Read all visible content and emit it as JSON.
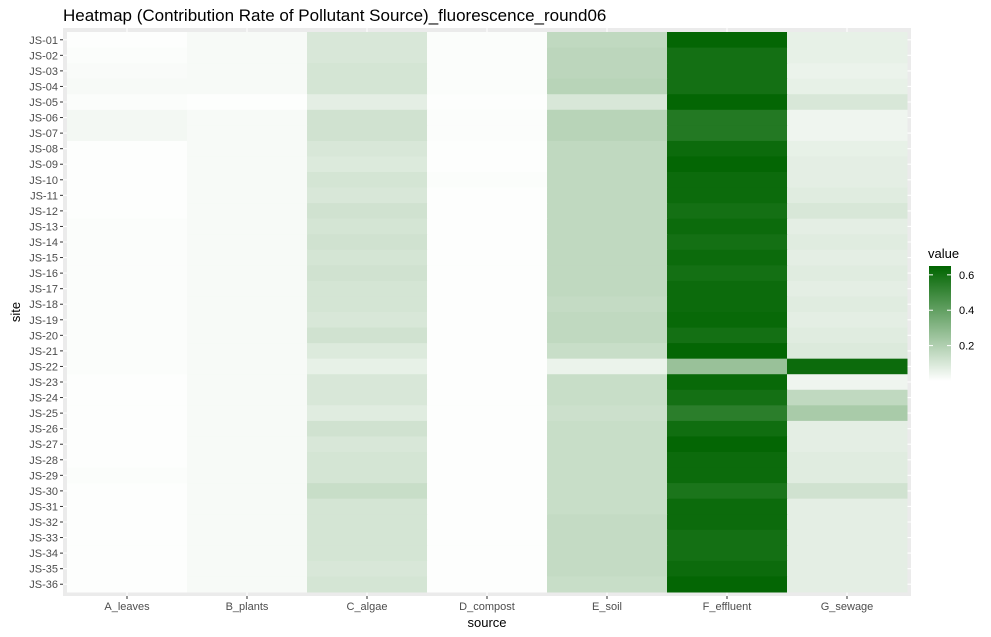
{
  "chart_data": {
    "type": "heatmap",
    "title": "Heatmap (Contribution Rate of Pollutant Source)_fluorescence_round06",
    "xlabel": "source",
    "ylabel": "site",
    "x_categories": [
      "A_leaves",
      "B_plants",
      "C_algae",
      "D_compost",
      "E_soil",
      "F_effluent",
      "G_sewage"
    ],
    "y_categories": [
      "JS-01",
      "JS-02",
      "JS-03",
      "JS-04",
      "JS-05",
      "JS-06",
      "JS-07",
      "JS-08",
      "JS-09",
      "JS-10",
      "JS-11",
      "JS-12",
      "JS-13",
      "JS-14",
      "JS-15",
      "JS-16",
      "JS-17",
      "JS-18",
      "JS-19",
      "JS-20",
      "JS-21",
      "JS-22",
      "JS-23",
      "JS-24",
      "JS-25",
      "JS-26",
      "JS-27",
      "JS-28",
      "JS-29",
      "JS-30",
      "JS-31",
      "JS-32",
      "JS-33",
      "JS-34",
      "JS-35",
      "JS-36"
    ],
    "values": [
      [
        0.005,
        0.02,
        0.1,
        0.01,
        0.16,
        0.64,
        0.06
      ],
      [
        0.01,
        0.02,
        0.1,
        0.01,
        0.17,
        0.6,
        0.06
      ],
      [
        0.015,
        0.02,
        0.11,
        0.01,
        0.17,
        0.6,
        0.05
      ],
      [
        0.02,
        0.02,
        0.11,
        0.01,
        0.18,
        0.6,
        0.06
      ],
      [
        0.01,
        0.005,
        0.07,
        0.005,
        0.1,
        0.64,
        0.1
      ],
      [
        0.03,
        0.02,
        0.12,
        0.01,
        0.18,
        0.56,
        0.04
      ],
      [
        0.03,
        0.02,
        0.12,
        0.01,
        0.18,
        0.56,
        0.04
      ],
      [
        0.005,
        0.02,
        0.1,
        0.005,
        0.16,
        0.62,
        0.06
      ],
      [
        0.005,
        0.02,
        0.09,
        0.005,
        0.16,
        0.64,
        0.07
      ],
      [
        0.005,
        0.02,
        0.11,
        0.01,
        0.16,
        0.62,
        0.07
      ],
      [
        0.005,
        0.02,
        0.1,
        0.005,
        0.16,
        0.62,
        0.08
      ],
      [
        0.005,
        0.02,
        0.12,
        0.005,
        0.16,
        0.6,
        0.1
      ],
      [
        0.01,
        0.02,
        0.11,
        0.005,
        0.16,
        0.62,
        0.07
      ],
      [
        0.01,
        0.02,
        0.12,
        0.005,
        0.16,
        0.6,
        0.08
      ],
      [
        0.01,
        0.02,
        0.11,
        0.005,
        0.16,
        0.62,
        0.07
      ],
      [
        0.01,
        0.02,
        0.12,
        0.005,
        0.16,
        0.6,
        0.08
      ],
      [
        0.01,
        0.02,
        0.11,
        0.005,
        0.16,
        0.62,
        0.07
      ],
      [
        0.01,
        0.02,
        0.11,
        0.005,
        0.15,
        0.62,
        0.08
      ],
      [
        0.01,
        0.02,
        0.1,
        0.005,
        0.16,
        0.63,
        0.07
      ],
      [
        0.01,
        0.02,
        0.12,
        0.005,
        0.16,
        0.6,
        0.08
      ],
      [
        0.01,
        0.02,
        0.09,
        0.005,
        0.14,
        0.64,
        0.09
      ],
      [
        0.01,
        0.02,
        0.06,
        0.005,
        0.05,
        0.26,
        0.62
      ],
      [
        0.005,
        0.02,
        0.1,
        0.005,
        0.14,
        0.63,
        0.04
      ],
      [
        0.005,
        0.02,
        0.1,
        0.005,
        0.14,
        0.6,
        0.16
      ],
      [
        0.005,
        0.02,
        0.08,
        0.005,
        0.13,
        0.54,
        0.22
      ],
      [
        0.005,
        0.02,
        0.12,
        0.005,
        0.14,
        0.61,
        0.07
      ],
      [
        0.005,
        0.02,
        0.1,
        0.005,
        0.14,
        0.64,
        0.07
      ],
      [
        0.005,
        0.02,
        0.11,
        0.005,
        0.14,
        0.62,
        0.08
      ],
      [
        0.01,
        0.02,
        0.11,
        0.005,
        0.14,
        0.62,
        0.08
      ],
      [
        0.005,
        0.02,
        0.14,
        0.005,
        0.14,
        0.58,
        0.12
      ],
      [
        0.005,
        0.02,
        0.11,
        0.005,
        0.14,
        0.62,
        0.07
      ],
      [
        0.005,
        0.02,
        0.11,
        0.005,
        0.15,
        0.62,
        0.07
      ],
      [
        0.005,
        0.02,
        0.11,
        0.005,
        0.15,
        0.6,
        0.07
      ],
      [
        0.005,
        0.02,
        0.11,
        0.005,
        0.15,
        0.6,
        0.07
      ],
      [
        0.005,
        0.02,
        0.1,
        0.005,
        0.15,
        0.62,
        0.07
      ],
      [
        0.005,
        0.02,
        0.11,
        0.005,
        0.14,
        0.64,
        0.07
      ]
    ],
    "legend": {
      "title": "value",
      "ticks": [
        0.2,
        0.4,
        0.6
      ],
      "tick_labels": [
        "0.2",
        "0.4",
        "0.6"
      ],
      "range": [
        0,
        0.65
      ],
      "placement": "right"
    },
    "colors": {
      "low": "#ffffff",
      "high": "#006400",
      "panel_background": "#ebebeb",
      "grid": "#ffffff"
    }
  }
}
